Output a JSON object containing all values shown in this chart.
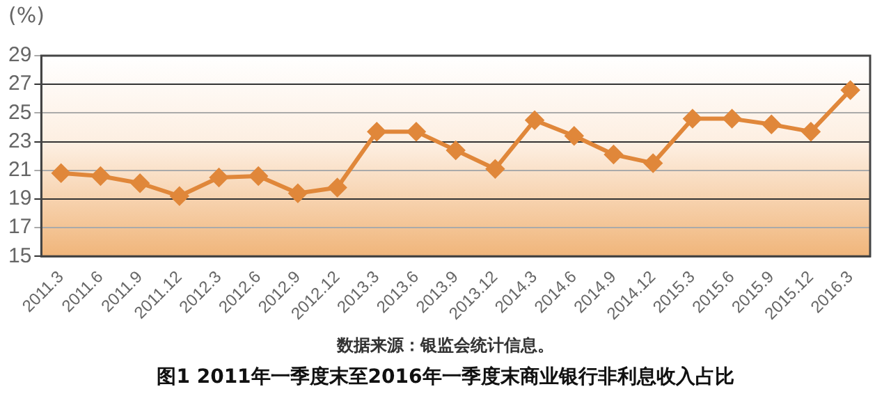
{
  "chart_data": {
    "type": "line",
    "title": "图1  2011年一季度末至2016年一季度末商业银行非利息收入占比",
    "ylabel": "(%)",
    "annotations": [
      "数据来源：银监会统计信息。"
    ],
    "categories": [
      "2011.3",
      "2011.6",
      "2011.9",
      "2011.12",
      "2012.3",
      "2012.6",
      "2012.9",
      "2012.12",
      "2013.3",
      "2013.6",
      "2013.9",
      "2013.12",
      "2014.3",
      "2014.6",
      "2014.9",
      "2014.12",
      "2015.3",
      "2015.6",
      "2015.9",
      "2015.12",
      "2016.3"
    ],
    "series": [
      {
        "color": "#e0873a",
        "values": [
          20.8,
          20.6,
          20.1,
          19.2,
          20.5,
          20.6,
          19.4,
          19.8,
          23.7,
          23.7,
          22.4,
          21.1,
          24.5,
          23.4,
          22.1,
          21.5,
          24.6,
          24.6,
          24.2,
          23.7,
          26.6
        ]
      }
    ],
    "ylim": [
      15,
      29
    ],
    "yticks": [
      15,
      17,
      19,
      21,
      23,
      25,
      27,
      29
    ],
    "grid": "y",
    "marker": "diamond",
    "line_style": "solid",
    "legend": false
  }
}
